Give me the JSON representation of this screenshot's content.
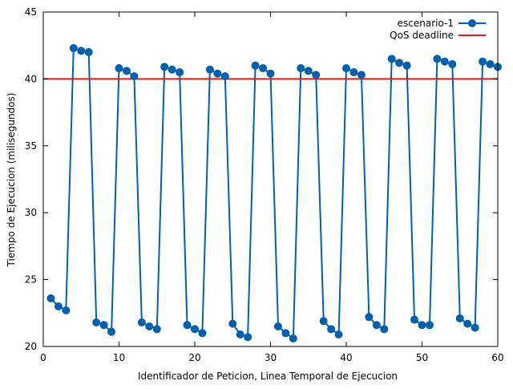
{
  "chart_data": {
    "type": "line",
    "xlabel": "Identificador de Peticion, Linea Temporal de Ejecucion",
    "ylabel": "Tiempo de Ejecucion (milisegundos)",
    "xlim": [
      0,
      60
    ],
    "ylim": [
      20,
      45
    ],
    "x_ticks": [
      0,
      10,
      20,
      30,
      40,
      50,
      60
    ],
    "y_ticks": [
      20,
      25,
      30,
      35,
      40,
      45
    ],
    "grid": false,
    "legend_position": "top-right",
    "series": [
      {
        "name": "escenario-1",
        "color": "#0060ad",
        "marker": "circle",
        "x": [
          1,
          2,
          3,
          4,
          5,
          6,
          7,
          8,
          9,
          10,
          11,
          12,
          13,
          14,
          15,
          16,
          17,
          18,
          19,
          20,
          21,
          22,
          23,
          24,
          25,
          26,
          27,
          28,
          29,
          30,
          31,
          32,
          33,
          34,
          35,
          36,
          37,
          38,
          39,
          40,
          41,
          42,
          43,
          44,
          45,
          46,
          47,
          48,
          49,
          50,
          51,
          52,
          53,
          54,
          55,
          56,
          57,
          58,
          59,
          60
        ],
        "values": [
          23.6,
          23.0,
          22.7,
          42.3,
          42.1,
          42.0,
          21.8,
          21.6,
          21.1,
          40.8,
          40.6,
          40.2,
          21.8,
          21.5,
          21.3,
          40.9,
          40.7,
          40.5,
          21.6,
          21.3,
          21.0,
          40.7,
          40.4,
          40.2,
          21.7,
          20.9,
          20.7,
          41.0,
          40.8,
          40.4,
          21.5,
          21.0,
          20.6,
          40.8,
          40.6,
          40.3,
          21.9,
          21.3,
          20.9,
          40.8,
          40.5,
          40.3,
          22.2,
          21.6,
          21.3,
          41.5,
          41.2,
          41.0,
          22.0,
          21.6,
          21.6,
          41.5,
          41.3,
          41.1,
          22.1,
          21.7,
          21.4,
          41.3,
          41.1,
          40.9
        ]
      },
      {
        "name": "QoS deadline",
        "color": "#e41a1c",
        "constant": 40
      }
    ]
  }
}
